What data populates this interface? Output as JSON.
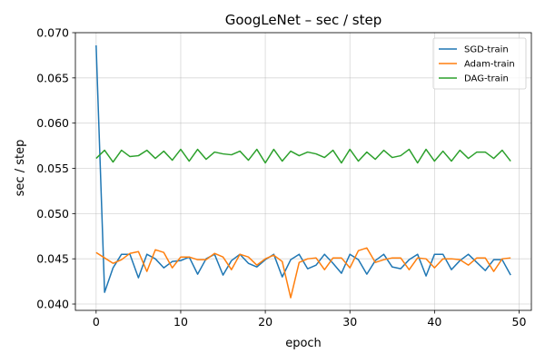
{
  "chart_data": {
    "type": "line",
    "title": "GoogLeNet – sec / step",
    "xlabel": "epoch",
    "ylabel": "sec / step",
    "xlim": [
      -2.45,
      51.45
    ],
    "ylim": [
      0.0393,
      0.07
    ],
    "xticks": [
      0,
      10,
      20,
      30,
      40,
      50
    ],
    "xtick_labels": [
      "0",
      "10",
      "20",
      "30",
      "40",
      "50"
    ],
    "yticks": [
      0.04,
      0.045,
      0.05,
      0.055,
      0.06,
      0.065,
      0.07
    ],
    "ytick_labels": [
      "0.040",
      "0.045",
      "0.050",
      "0.055",
      "0.060",
      "0.065",
      "0.070"
    ],
    "grid": true,
    "legend_position": "top-right",
    "x": [
      0,
      1,
      2,
      3,
      4,
      5,
      6,
      7,
      8,
      9,
      10,
      11,
      12,
      13,
      14,
      15,
      16,
      17,
      18,
      19,
      20,
      21,
      22,
      23,
      24,
      25,
      26,
      27,
      28,
      29,
      30,
      31,
      32,
      33,
      34,
      35,
      36,
      37,
      38,
      39,
      40,
      41,
      42,
      43,
      44,
      45,
      46,
      47,
      48,
      49
    ],
    "series": [
      {
        "name": "SGD-train",
        "color": "#1f77b4",
        "values": [
          0.0686,
          0.0413,
          0.044,
          0.0455,
          0.0455,
          0.0429,
          0.0455,
          0.045,
          0.044,
          0.0447,
          0.0448,
          0.0452,
          0.0433,
          0.045,
          0.0455,
          0.0432,
          0.0448,
          0.0455,
          0.0445,
          0.0441,
          0.0449,
          0.0455,
          0.043,
          0.0449,
          0.0455,
          0.0439,
          0.0443,
          0.0455,
          0.0445,
          0.0434,
          0.0455,
          0.0449,
          0.0433,
          0.0448,
          0.0455,
          0.0441,
          0.0439,
          0.0449,
          0.0455,
          0.0431,
          0.0455,
          0.0455,
          0.0438,
          0.0448,
          0.0455,
          0.0446,
          0.0437,
          0.0449,
          0.0449,
          0.0432
        ]
      },
      {
        "name": "Adam-train",
        "color": "#ff7f0e",
        "values": [
          0.0457,
          0.0451,
          0.0445,
          0.0449,
          0.0456,
          0.0458,
          0.0436,
          0.046,
          0.0457,
          0.044,
          0.0452,
          0.0452,
          0.0449,
          0.0449,
          0.0456,
          0.0452,
          0.0438,
          0.0455,
          0.0452,
          0.0443,
          0.045,
          0.0454,
          0.0447,
          0.0407,
          0.0446,
          0.045,
          0.0451,
          0.0438,
          0.0451,
          0.0451,
          0.044,
          0.0459,
          0.0462,
          0.0446,
          0.0449,
          0.0451,
          0.0451,
          0.0438,
          0.0451,
          0.045,
          0.044,
          0.045,
          0.045,
          0.0449,
          0.0443,
          0.0451,
          0.0451,
          0.0436,
          0.045,
          0.0451
        ]
      },
      {
        "name": "DAG-train",
        "color": "#2ca02c",
        "values": [
          0.0561,
          0.057,
          0.0557,
          0.057,
          0.0563,
          0.0564,
          0.057,
          0.0561,
          0.0569,
          0.0559,
          0.0571,
          0.0558,
          0.0571,
          0.056,
          0.0568,
          0.0566,
          0.0565,
          0.0569,
          0.0559,
          0.0571,
          0.0556,
          0.0571,
          0.0558,
          0.0569,
          0.0564,
          0.0568,
          0.0566,
          0.0562,
          0.057,
          0.0556,
          0.0571,
          0.0558,
          0.0568,
          0.056,
          0.057,
          0.0562,
          0.0564,
          0.0571,
          0.0556,
          0.0571,
          0.0558,
          0.0569,
          0.0558,
          0.057,
          0.0561,
          0.0568,
          0.0568,
          0.0561,
          0.057,
          0.0558
        ]
      }
    ]
  }
}
